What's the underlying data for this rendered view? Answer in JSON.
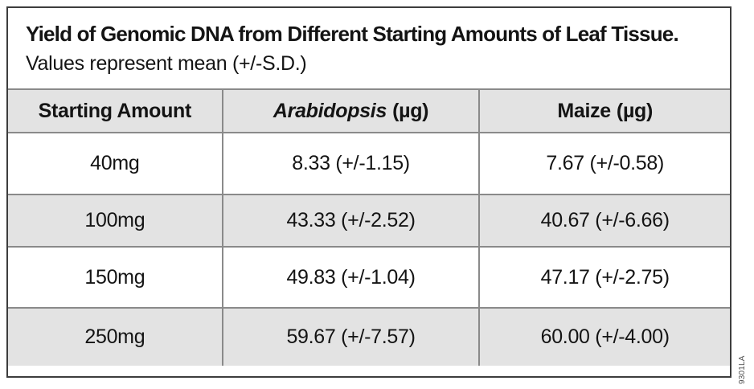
{
  "figure": {
    "title": "Yield of Genomic DNA from Different Starting Amounts of Leaf Tissue.",
    "subtitle": "Values represent mean (+/-S.D.)",
    "figure_number": "9301LA"
  },
  "table": {
    "header": {
      "starting_amount": "Starting Amount",
      "arabidopsis_name": "Arabidopsis",
      "arabidopsis_unit": "(µg)",
      "maize_name": "Maize",
      "maize_unit": "(µg)"
    },
    "rows": [
      {
        "amount": "40mg",
        "arabidopsis": "8.33 (+/-1.15)",
        "maize": "7.67 (+/-0.58)"
      },
      {
        "amount": "100mg",
        "arabidopsis": "43.33 (+/-2.52)",
        "maize": "40.67 (+/-6.66)"
      },
      {
        "amount": "150mg",
        "arabidopsis": "49.83 (+/-1.04)",
        "maize": "47.17 (+/-2.75)"
      },
      {
        "amount": "250mg",
        "arabidopsis": "59.67 (+/-7.57)",
        "maize": "60.00 (+/-4.00)"
      }
    ]
  },
  "chart_data": {
    "type": "table",
    "title": "Yield of Genomic DNA from Different Starting Amounts of Leaf Tissue.",
    "subtitle": "Values represent mean (+/-S.D.)",
    "columns": [
      "Starting Amount",
      "Arabidopsis (µg)",
      "Maize (µg)"
    ],
    "categories": [
      "40mg",
      "100mg",
      "150mg",
      "250mg"
    ],
    "series": [
      {
        "name": "Arabidopsis (µg)",
        "means": [
          8.33,
          43.33,
          49.83,
          59.67
        ],
        "sd": [
          1.15,
          2.52,
          1.04,
          7.57
        ]
      },
      {
        "name": "Maize (µg)",
        "means": [
          7.67,
          40.67,
          47.17,
          60.0
        ],
        "sd": [
          0.58,
          6.66,
          2.75,
          4.0
        ]
      }
    ],
    "rows": [
      [
        "40mg",
        "8.33 (+/-1.15)",
        "7.67 (+/-0.58)"
      ],
      [
        "100mg",
        "43.33 (+/-2.52)",
        "40.67 (+/-6.66)"
      ],
      [
        "150mg",
        "49.83 (+/-1.04)",
        "47.17 (+/-2.75)"
      ],
      [
        "250mg",
        "59.67 (+/-7.57)",
        "60.00 (+/-4.00)"
      ]
    ]
  },
  "colors": {
    "row_shade": "#e3e3e3",
    "outer_border": "#3d3d3d",
    "inner_border": "#8a8a8a"
  }
}
